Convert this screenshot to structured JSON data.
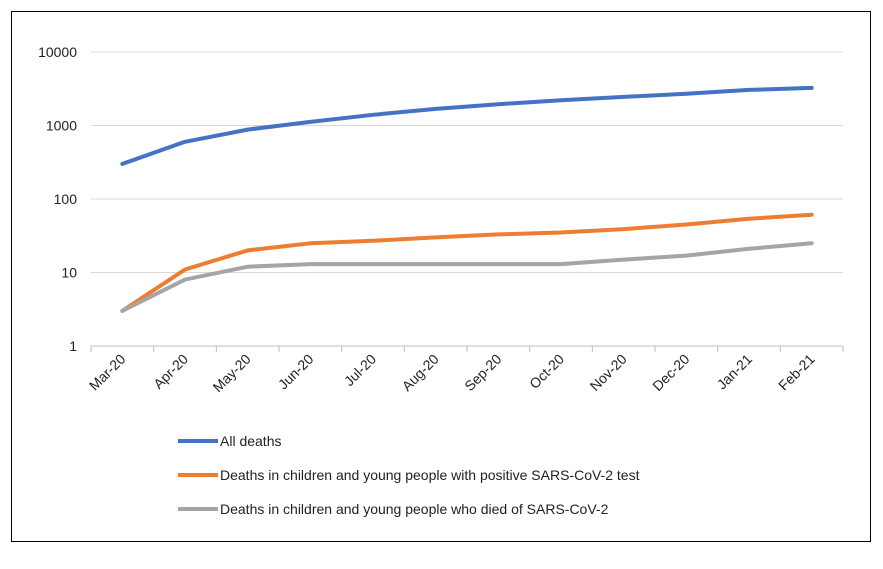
{
  "chart_data": {
    "type": "line",
    "title": "",
    "xlabel": "",
    "ylabel": "",
    "y_scale": "log",
    "ylim": [
      1,
      10000
    ],
    "y_ticks": [
      "1",
      "10",
      "100",
      "1000",
      "10000"
    ],
    "grid": "horizontal",
    "legend_position": "bottom",
    "categories": [
      "Mar-20",
      "Apr-20",
      "May-20",
      "Jun-20",
      "Jul-20",
      "Aug-20",
      "Sep-20",
      "Oct-20",
      "Nov-20",
      "Dec-20",
      "Jan-21",
      "Feb-21"
    ],
    "series": [
      {
        "name": "All deaths",
        "color": "#4472C4",
        "values": [
          300,
          600,
          880,
          1120,
          1400,
          1680,
          1950,
          2200,
          2450,
          2700,
          3050,
          3250
        ]
      },
      {
        "name": "Deaths in children and young people with positive SARS-CoV-2 test",
        "color": "#ED7D31",
        "values": [
          3,
          11,
          20,
          25,
          27,
          30,
          33,
          35,
          39,
          45,
          54,
          61
        ]
      },
      {
        "name": "Deaths in children and young people who died of SARS-CoV-2",
        "color": "#A5A5A5",
        "values": [
          3,
          8,
          12,
          13,
          13,
          13,
          13,
          13,
          15,
          17,
          21,
          25
        ]
      }
    ]
  }
}
